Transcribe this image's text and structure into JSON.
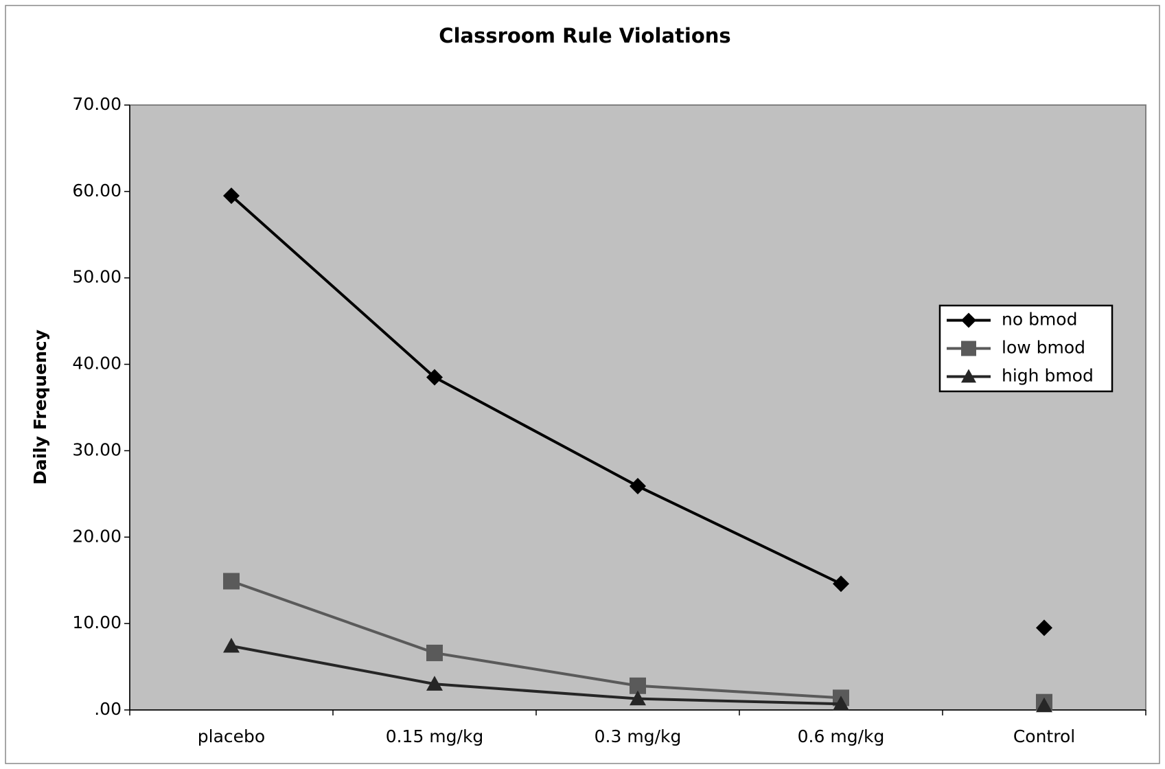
{
  "chart_data": {
    "type": "line",
    "title": "Classroom Rule Violations",
    "y_label": "Daily Frequency",
    "categories": [
      "placebo",
      "0.15 mg/kg",
      "0.3 mg/kg",
      "0.6 mg/kg",
      "Control"
    ],
    "isolated_categories": [
      4
    ],
    "series": [
      {
        "name": "no bmod",
        "color": "#000000",
        "marker": "diamond",
        "values": [
          59.5,
          38.5,
          25.9,
          14.6,
          9.5
        ]
      },
      {
        "name": "low bmod",
        "color": "#5a5a5a",
        "marker": "square",
        "values": [
          14.9,
          6.6,
          2.8,
          1.4,
          0.9
        ]
      },
      {
        "name": "high bmod",
        "color": "#262626",
        "marker": "triangle",
        "values": [
          7.4,
          3.0,
          1.3,
          0.7,
          0.5
        ]
      }
    ],
    "ylim": [
      0,
      70
    ],
    "yticks": [
      {
        "value": 0,
        "label": ".00"
      },
      {
        "value": 10,
        "label": "10.00"
      },
      {
        "value": 20,
        "label": "20.00"
      },
      {
        "value": 30,
        "label": "30.00"
      },
      {
        "value": 40,
        "label": "40.00"
      },
      {
        "value": 50,
        "label": "50.00"
      },
      {
        "value": 60,
        "label": "60.00"
      },
      {
        "value": 70,
        "label": "70.00"
      }
    ],
    "legend": "right",
    "background": "#c0c0c0"
  }
}
